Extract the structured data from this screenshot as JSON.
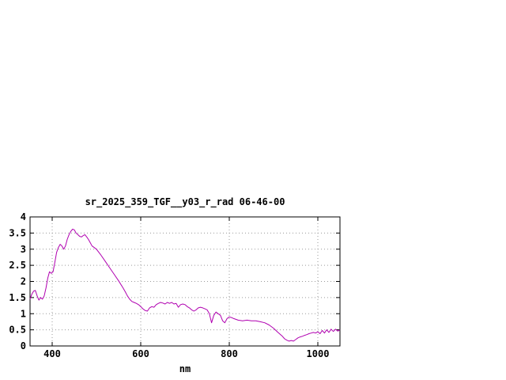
{
  "chart_data": {
    "type": "line",
    "title": "sr_2025_359_TGF__y03_r_rad 06-46-00",
    "xlabel": "nm",
    "ylabel": "",
    "xlim": [
      350,
      1050
    ],
    "ylim": [
      0,
      4
    ],
    "xticks": [
      400,
      600,
      800,
      1000
    ],
    "xtick_labels": [
      "400",
      "600",
      "800",
      "1000"
    ],
    "yticks": [
      0,
      0.5,
      1,
      1.5,
      2,
      2.5,
      3,
      3.5,
      4
    ],
    "ytick_labels": [
      "0",
      "0.5",
      "1",
      "1.5",
      "2",
      "2.5",
      "3",
      "3.5",
      "4"
    ],
    "grid": true,
    "legend": "none",
    "line_color": "#b000b0",
    "series": [
      {
        "points": [
          [
            350,
            1.45
          ],
          [
            354,
            1.6
          ],
          [
            358,
            1.7
          ],
          [
            362,
            1.72
          ],
          [
            366,
            1.55
          ],
          [
            370,
            1.42
          ],
          [
            374,
            1.5
          ],
          [
            378,
            1.45
          ],
          [
            382,
            1.55
          ],
          [
            386,
            1.8
          ],
          [
            390,
            2.1
          ],
          [
            394,
            2.3
          ],
          [
            398,
            2.25
          ],
          [
            402,
            2.3
          ],
          [
            406,
            2.6
          ],
          [
            410,
            2.9
          ],
          [
            414,
            3.05
          ],
          [
            418,
            3.15
          ],
          [
            422,
            3.1
          ],
          [
            426,
            3.0
          ],
          [
            430,
            3.1
          ],
          [
            434,
            3.3
          ],
          [
            438,
            3.45
          ],
          [
            442,
            3.55
          ],
          [
            446,
            3.62
          ],
          [
            450,
            3.6
          ],
          [
            454,
            3.5
          ],
          [
            458,
            3.45
          ],
          [
            462,
            3.4
          ],
          [
            466,
            3.38
          ],
          [
            470,
            3.42
          ],
          [
            474,
            3.45
          ],
          [
            478,
            3.38
          ],
          [
            482,
            3.3
          ],
          [
            486,
            3.2
          ],
          [
            490,
            3.1
          ],
          [
            495,
            3.05
          ],
          [
            500,
            3.0
          ],
          [
            510,
            2.82
          ],
          [
            520,
            2.62
          ],
          [
            530,
            2.42
          ],
          [
            540,
            2.22
          ],
          [
            550,
            2.02
          ],
          [
            560,
            1.8
          ],
          [
            565,
            1.68
          ],
          [
            570,
            1.55
          ],
          [
            575,
            1.45
          ],
          [
            580,
            1.38
          ],
          [
            585,
            1.35
          ],
          [
            590,
            1.32
          ],
          [
            595,
            1.28
          ],
          [
            600,
            1.22
          ],
          [
            605,
            1.15
          ],
          [
            610,
            1.1
          ],
          [
            615,
            1.08
          ],
          [
            620,
            1.18
          ],
          [
            625,
            1.22
          ],
          [
            630,
            1.2
          ],
          [
            635,
            1.28
          ],
          [
            640,
            1.32
          ],
          [
            645,
            1.35
          ],
          [
            650,
            1.33
          ],
          [
            655,
            1.3
          ],
          [
            660,
            1.35
          ],
          [
            665,
            1.32
          ],
          [
            670,
            1.35
          ],
          [
            675,
            1.3
          ],
          [
            680,
            1.32
          ],
          [
            685,
            1.2
          ],
          [
            690,
            1.28
          ],
          [
            695,
            1.3
          ],
          [
            700,
            1.28
          ],
          [
            705,
            1.22
          ],
          [
            710,
            1.18
          ],
          [
            715,
            1.12
          ],
          [
            720,
            1.08
          ],
          [
            725,
            1.12
          ],
          [
            730,
            1.18
          ],
          [
            735,
            1.2
          ],
          [
            740,
            1.18
          ],
          [
            745,
            1.15
          ],
          [
            750,
            1.12
          ],
          [
            755,
            1.0
          ],
          [
            760,
            0.72
          ],
          [
            765,
            0.95
          ],
          [
            770,
            1.05
          ],
          [
            775,
            1.0
          ],
          [
            780,
            0.95
          ],
          [
            785,
            0.78
          ],
          [
            790,
            0.72
          ],
          [
            795,
            0.85
          ],
          [
            800,
            0.9
          ],
          [
            805,
            0.88
          ],
          [
            810,
            0.85
          ],
          [
            820,
            0.8
          ],
          [
            830,
            0.78
          ],
          [
            840,
            0.8
          ],
          [
            850,
            0.78
          ],
          [
            860,
            0.78
          ],
          [
            870,
            0.75
          ],
          [
            880,
            0.72
          ],
          [
            890,
            0.65
          ],
          [
            900,
            0.55
          ],
          [
            910,
            0.42
          ],
          [
            920,
            0.3
          ],
          [
            925,
            0.22
          ],
          [
            930,
            0.18
          ],
          [
            935,
            0.15
          ],
          [
            940,
            0.17
          ],
          [
            945,
            0.15
          ],
          [
            950,
            0.2
          ],
          [
            955,
            0.25
          ],
          [
            960,
            0.28
          ],
          [
            965,
            0.3
          ],
          [
            970,
            0.33
          ],
          [
            975,
            0.35
          ],
          [
            980,
            0.38
          ],
          [
            985,
            0.4
          ],
          [
            990,
            0.42
          ],
          [
            995,
            0.4
          ],
          [
            1000,
            0.44
          ],
          [
            1005,
            0.38
          ],
          [
            1010,
            0.48
          ],
          [
            1015,
            0.4
          ],
          [
            1020,
            0.5
          ],
          [
            1025,
            0.42
          ],
          [
            1030,
            0.52
          ],
          [
            1035,
            0.45
          ],
          [
            1040,
            0.52
          ],
          [
            1045,
            0.46
          ],
          [
            1050,
            0.5
          ]
        ]
      }
    ]
  },
  "colors": {
    "background": "#ffffff",
    "axis": "#000000",
    "grid": "#9a9a9a",
    "line": "#b000b0",
    "text": "#000000"
  }
}
